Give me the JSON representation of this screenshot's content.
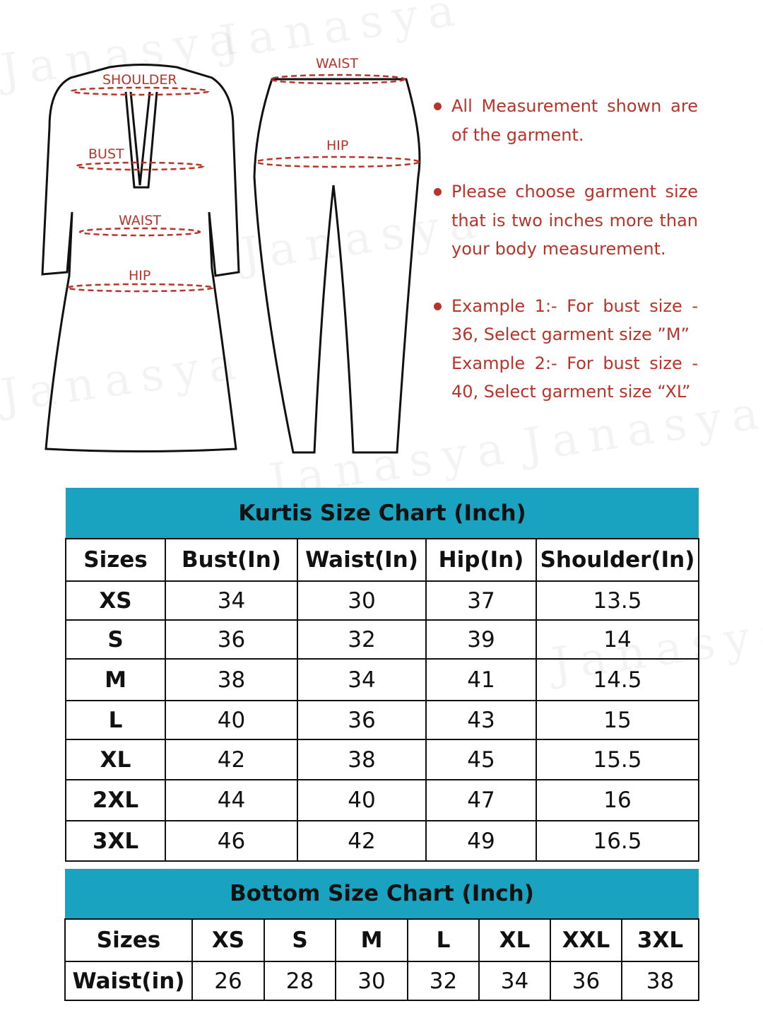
{
  "watermark": "Janasya",
  "colors": {
    "accent_teal": "#1aa3c0",
    "text_red": "#b8342a",
    "outline": "#111111"
  },
  "kurti_diagram": {
    "labels": {
      "shoulder": "SHOULDER",
      "bust": "BUST",
      "waist": "WAIST",
      "hip": "HIP"
    }
  },
  "bottom_diagram": {
    "labels": {
      "waist": "WAIST",
      "hip": "HIP"
    }
  },
  "notes": [
    {
      "text": "All Measurement shown are of the garment."
    },
    {
      "text": "Please choose garment size that is two inches more than your body measurement."
    },
    {
      "line1": "Example 1:- For bust size - 36, Select garment size ”M”",
      "line2": "Example 2:- For bust size - 40, Select garment size  “XL”"
    }
  ],
  "kurti_table": {
    "title": "Kurtis Size Chart (Inch)",
    "headers": [
      "Sizes",
      "Bust(In)",
      "Waist(In)",
      "Hip(In)",
      "Shoulder(In)"
    ],
    "rows": [
      [
        "XS",
        "34",
        "30",
        "37",
        "13.5"
      ],
      [
        "S",
        "36",
        "32",
        "39",
        "14"
      ],
      [
        "M",
        "38",
        "34",
        "41",
        "14.5"
      ],
      [
        "L",
        "40",
        "36",
        "43",
        "15"
      ],
      [
        "XL",
        "42",
        "38",
        "45",
        "15.5"
      ],
      [
        "2XL",
        "44",
        "40",
        "47",
        "16"
      ],
      [
        "3XL",
        "46",
        "42",
        "49",
        "16.5"
      ]
    ]
  },
  "bottom_table": {
    "title": "Bottom Size Chart (Inch)",
    "headers": [
      "Sizes",
      "XS",
      "S",
      "M",
      "L",
      "XL",
      "XXL",
      "3XL"
    ],
    "row": [
      "Waist(in)",
      "26",
      "28",
      "30",
      "32",
      "34",
      "36",
      "38"
    ]
  }
}
